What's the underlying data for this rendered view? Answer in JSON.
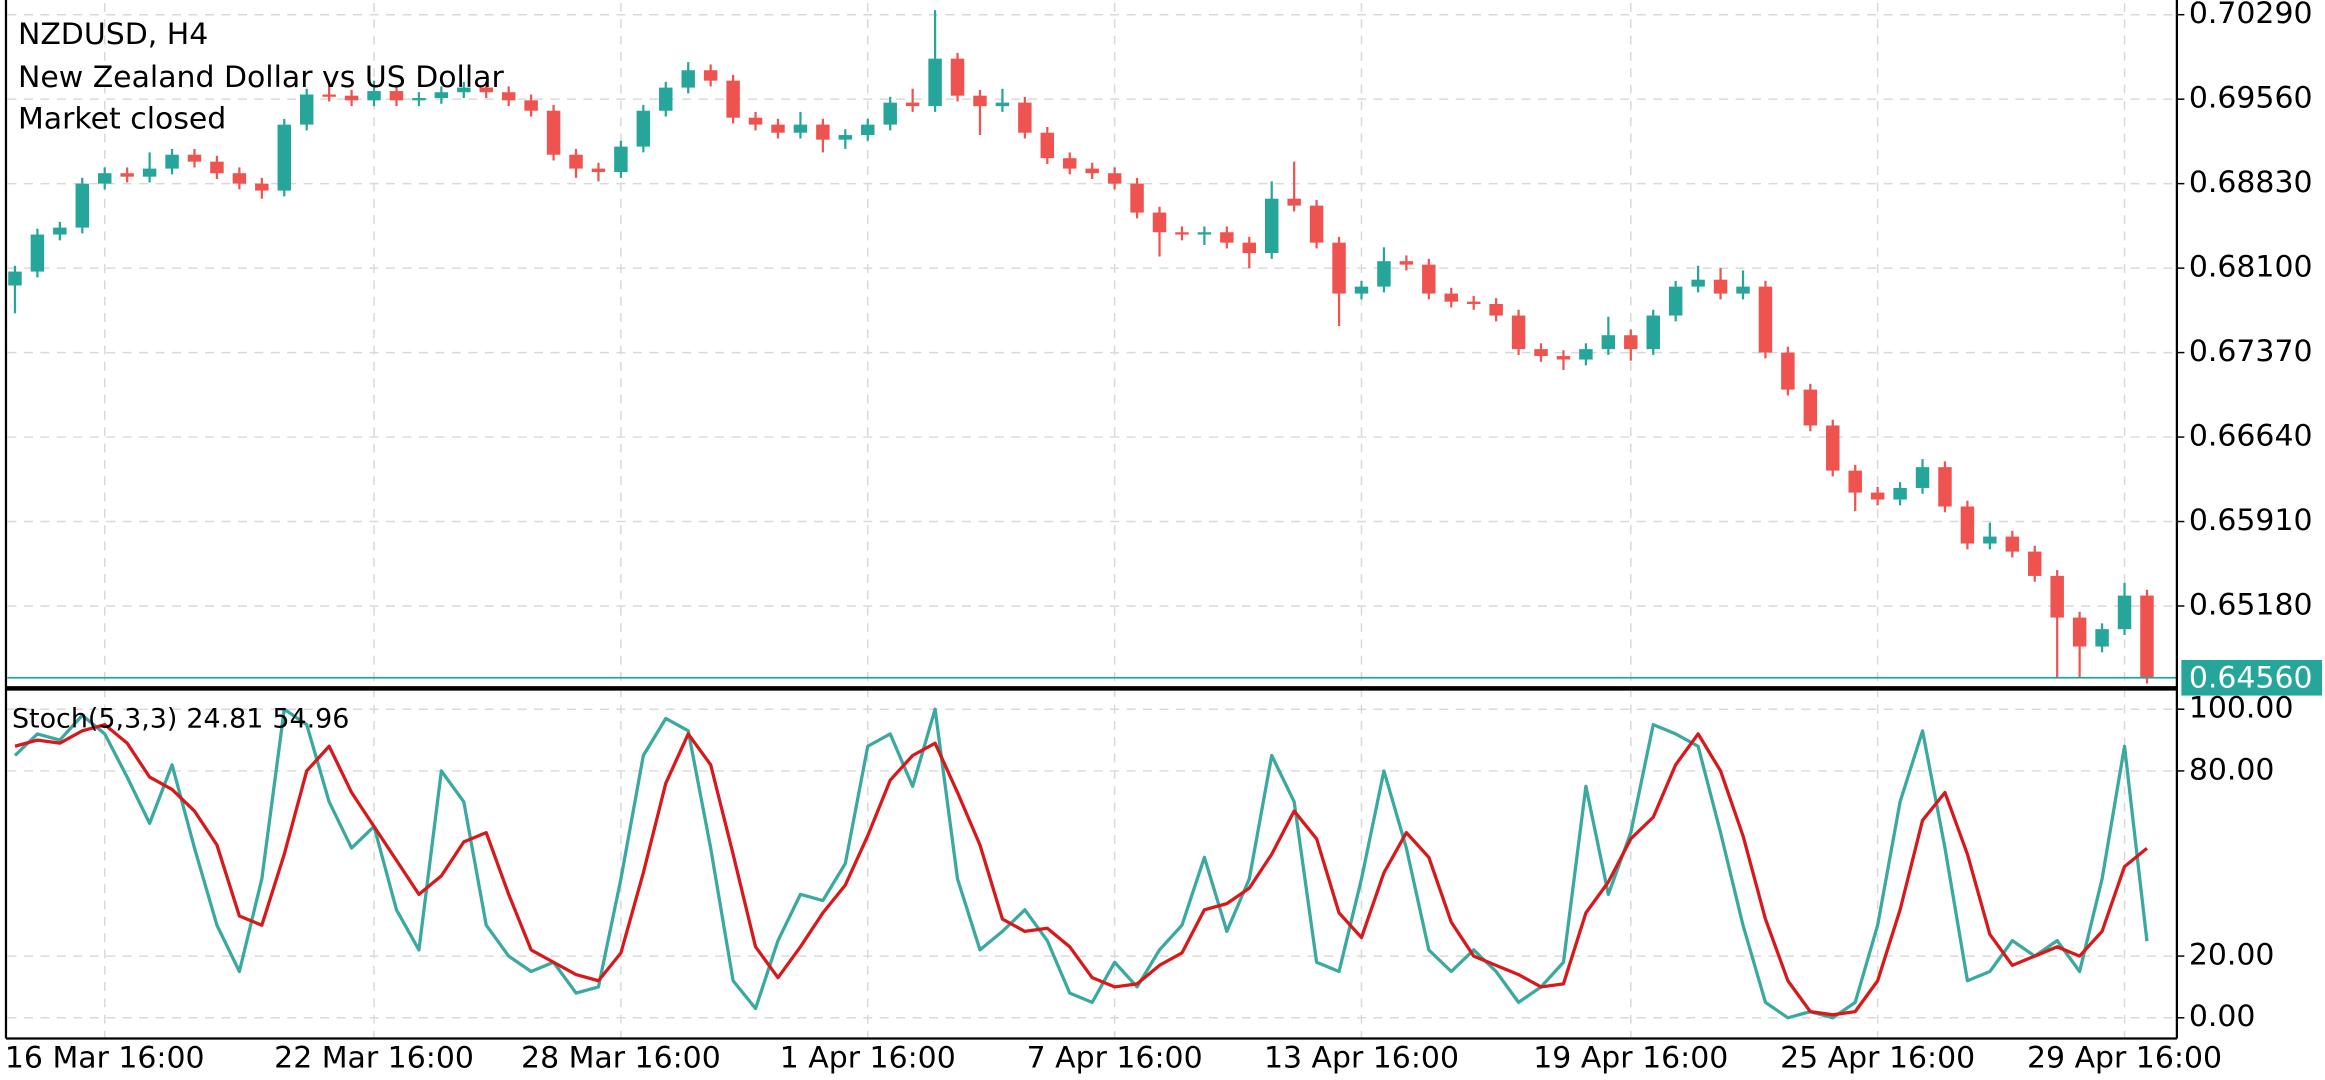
{
  "chart_data": [
    {
      "type": "candlestick",
      "title": "NZDUSD, H4",
      "subtitle": "New Zealand Dollar vs US Dollar",
      "status": "Market closed",
      "up_color": "#26a69a",
      "down_color": "#ef5350",
      "ylim": [
        0.64494,
        0.70417
      ],
      "yticks": [
        {
          "value": 0.7029,
          "label": "0.70290"
        },
        {
          "value": 0.6956,
          "label": "0.69560"
        },
        {
          "value": 0.6883,
          "label": "0.68830"
        },
        {
          "value": 0.681,
          "label": "0.68100"
        },
        {
          "value": 0.6737,
          "label": "0.67370"
        },
        {
          "value": 0.6664,
          "label": "0.66640"
        },
        {
          "value": 0.6591,
          "label": "0.65910"
        },
        {
          "value": 0.6518,
          "label": "0.65180"
        }
      ],
      "current_price": {
        "value": 0.6456,
        "label": "0.64560"
      },
      "grid": true,
      "categories": [
        null,
        null,
        null,
        null,
        "16 Mar 16:00",
        null,
        null,
        null,
        null,
        null,
        null,
        null,
        null,
        null,
        null,
        null,
        "22 Mar 16:00",
        null,
        null,
        null,
        null,
        null,
        null,
        null,
        null,
        null,
        null,
        "28 Mar 16:00",
        null,
        null,
        null,
        null,
        null,
        null,
        null,
        null,
        null,
        null,
        "1 Apr 16:00",
        null,
        null,
        null,
        null,
        null,
        null,
        null,
        null,
        null,
        null,
        "7 Apr 16:00",
        null,
        null,
        null,
        null,
        null,
        null,
        null,
        null,
        null,
        null,
        "13 Apr 16:00",
        null,
        null,
        null,
        null,
        null,
        null,
        null,
        null,
        null,
        null,
        null,
        "19 Apr 16:00",
        null,
        null,
        null,
        null,
        null,
        null,
        null,
        null,
        null,
        null,
        "25 Apr 16:00",
        null,
        null,
        null,
        null,
        null,
        null,
        null,
        null,
        null,
        null,
        "29 Apr 16:00",
        null
      ],
      "ohlc": [
        [
          0.6795,
          0.6812,
          0.6771,
          0.6807
        ],
        [
          0.6807,
          0.6844,
          0.6802,
          0.6839
        ],
        [
          0.6839,
          0.685,
          0.6834,
          0.6845
        ],
        [
          0.6845,
          0.6888,
          0.684,
          0.6883
        ],
        [
          0.6883,
          0.6897,
          0.6878,
          0.6892
        ],
        [
          0.6892,
          0.6897,
          0.6884,
          0.6889
        ],
        [
          0.6889,
          0.691,
          0.6884,
          0.6896
        ],
        [
          0.6896,
          0.6913,
          0.6891,
          0.6908
        ],
        [
          0.6908,
          0.6913,
          0.6897,
          0.6902
        ],
        [
          0.6902,
          0.6907,
          0.6887,
          0.6892
        ],
        [
          0.6892,
          0.6897,
          0.6878,
          0.6883
        ],
        [
          0.6883,
          0.6888,
          0.687,
          0.6877
        ],
        [
          0.6877,
          0.6939,
          0.6872,
          0.6934
        ],
        [
          0.6934,
          0.6965,
          0.6929,
          0.696
        ],
        [
          0.696,
          0.6968,
          0.6954,
          0.6959
        ],
        [
          0.6959,
          0.6964,
          0.695,
          0.6955
        ],
        [
          0.6955,
          0.6972,
          0.695,
          0.6963
        ],
        [
          0.6963,
          0.6968,
          0.695,
          0.6955
        ],
        [
          0.6955,
          0.6962,
          0.695,
          0.6957
        ],
        [
          0.6957,
          0.6967,
          0.6952,
          0.6962
        ],
        [
          0.6962,
          0.6971,
          0.6957,
          0.6966
        ],
        [
          0.6966,
          0.6971,
          0.6957,
          0.6962
        ],
        [
          0.6962,
          0.6967,
          0.695,
          0.6955
        ],
        [
          0.6955,
          0.696,
          0.6941,
          0.6946
        ],
        [
          0.6946,
          0.6951,
          0.6903,
          0.6908
        ],
        [
          0.6908,
          0.6913,
          0.6888,
          0.6896
        ],
        [
          0.6896,
          0.6901,
          0.6885,
          0.6893
        ],
        [
          0.6893,
          0.692,
          0.6888,
          0.6915
        ],
        [
          0.6915,
          0.6951,
          0.691,
          0.6946
        ],
        [
          0.6946,
          0.6971,
          0.6941,
          0.6966
        ],
        [
          0.6966,
          0.6988,
          0.6961,
          0.6981
        ],
        [
          0.6981,
          0.6986,
          0.6967,
          0.6972
        ],
        [
          0.6972,
          0.6977,
          0.6935,
          0.694
        ],
        [
          0.694,
          0.6945,
          0.6929,
          0.6934
        ],
        [
          0.6934,
          0.6939,
          0.6922,
          0.6927
        ],
        [
          0.6927,
          0.6945,
          0.6922,
          0.6934
        ],
        [
          0.6934,
          0.6939,
          0.691,
          0.6921
        ],
        [
          0.6921,
          0.693,
          0.6913,
          0.6925
        ],
        [
          0.6925,
          0.6939,
          0.692,
          0.6934
        ],
        [
          0.6934,
          0.6958,
          0.6929,
          0.6953
        ],
        [
          0.6953,
          0.6965,
          0.6945,
          0.695
        ],
        [
          0.695,
          0.7033,
          0.6945,
          0.6991
        ],
        [
          0.6991,
          0.6996,
          0.6954,
          0.6959
        ],
        [
          0.6959,
          0.6964,
          0.6925,
          0.695
        ],
        [
          0.695,
          0.6965,
          0.6945,
          0.6953
        ],
        [
          0.6953,
          0.6958,
          0.6922,
          0.6927
        ],
        [
          0.6927,
          0.6932,
          0.69,
          0.6905
        ],
        [
          0.6905,
          0.691,
          0.6891,
          0.6896
        ],
        [
          0.6896,
          0.6901,
          0.6887,
          0.6892
        ],
        [
          0.6892,
          0.6897,
          0.6878,
          0.6883
        ],
        [
          0.6883,
          0.6888,
          0.6853,
          0.6858
        ],
        [
          0.6858,
          0.6863,
          0.682,
          0.6841
        ],
        [
          0.6841,
          0.6846,
          0.6834,
          0.6839
        ],
        [
          0.6839,
          0.6846,
          0.683,
          0.6841
        ],
        [
          0.6841,
          0.6846,
          0.6827,
          0.6832
        ],
        [
          0.6832,
          0.6837,
          0.681,
          0.6823
        ],
        [
          0.6823,
          0.6885,
          0.6818,
          0.687
        ],
        [
          0.687,
          0.6902,
          0.6859,
          0.6864
        ],
        [
          0.6864,
          0.6869,
          0.6827,
          0.6832
        ],
        [
          0.6832,
          0.6837,
          0.676,
          0.6788
        ],
        [
          0.6788,
          0.6799,
          0.6783,
          0.6794
        ],
        [
          0.6794,
          0.6828,
          0.6789,
          0.6816
        ],
        [
          0.6816,
          0.6821,
          0.6808,
          0.6813
        ],
        [
          0.6813,
          0.6818,
          0.6783,
          0.6788
        ],
        [
          0.6788,
          0.6793,
          0.6776,
          0.6781
        ],
        [
          0.6781,
          0.6786,
          0.6774,
          0.6779
        ],
        [
          0.6779,
          0.6784,
          0.6764,
          0.6769
        ],
        [
          0.6769,
          0.6774,
          0.6735,
          0.674
        ],
        [
          0.674,
          0.6745,
          0.6729,
          0.6734
        ],
        [
          0.6734,
          0.6739,
          0.6722,
          0.6731
        ],
        [
          0.6731,
          0.6745,
          0.6726,
          0.674
        ],
        [
          0.674,
          0.6768,
          0.6735,
          0.6752
        ],
        [
          0.6752,
          0.6757,
          0.673,
          0.674
        ],
        [
          0.674,
          0.6774,
          0.6735,
          0.6769
        ],
        [
          0.6769,
          0.6799,
          0.6764,
          0.6794
        ],
        [
          0.6794,
          0.6812,
          0.6789,
          0.68
        ],
        [
          0.68,
          0.681,
          0.6783,
          0.6788
        ],
        [
          0.6788,
          0.6808,
          0.6783,
          0.6794
        ],
        [
          0.6794,
          0.6799,
          0.6732,
          0.6737
        ],
        [
          0.6737,
          0.6742,
          0.67,
          0.6705
        ],
        [
          0.6705,
          0.671,
          0.6669,
          0.6674
        ],
        [
          0.6674,
          0.6679,
          0.663,
          0.6635
        ],
        [
          0.6635,
          0.664,
          0.66,
          0.6616
        ],
        [
          0.6616,
          0.6621,
          0.6605,
          0.661
        ],
        [
          0.661,
          0.6625,
          0.6605,
          0.662
        ],
        [
          0.662,
          0.6645,
          0.6615,
          0.6638
        ],
        [
          0.6638,
          0.6643,
          0.6599,
          0.6604
        ],
        [
          0.6604,
          0.6609,
          0.6567,
          0.6572
        ],
        [
          0.6572,
          0.659,
          0.6567,
          0.6578
        ],
        [
          0.6578,
          0.6583,
          0.656,
          0.6565
        ],
        [
          0.6565,
          0.657,
          0.6539,
          0.6544
        ],
        [
          0.6544,
          0.6549,
          0.6456,
          0.6508
        ],
        [
          0.6508,
          0.6513,
          0.6456,
          0.6483
        ],
        [
          0.6483,
          0.6503,
          0.6478,
          0.6498
        ],
        [
          0.6498,
          0.6538,
          0.6493,
          0.6527
        ],
        [
          0.6527,
          0.6532,
          0.6451,
          0.6456
        ]
      ]
    },
    {
      "type": "line",
      "label": "Stoch(5,3,3)",
      "current_values": [
        24.81,
        54.96
      ],
      "ylim": [
        -6.7,
        105.8
      ],
      "yticks": [
        {
          "value": 100,
          "label": "100.00"
        },
        {
          "value": 80,
          "label": "80.00"
        },
        {
          "value": 20,
          "label": "20.00"
        },
        {
          "value": 0,
          "label": "0.00"
        }
      ],
      "grid": true,
      "series": [
        {
          "color": "#3aa9a0",
          "values": [
            85,
            92,
            90,
            98,
            92,
            78,
            63,
            82,
            55,
            30,
            15,
            45,
            100,
            95,
            70,
            55,
            62,
            35,
            22,
            80,
            70,
            30,
            20,
            15,
            18,
            8,
            10,
            45,
            85,
            97,
            93,
            55,
            12,
            3,
            25,
            40,
            38,
            50,
            88,
            92,
            75,
            100,
            45,
            22,
            28,
            35,
            25,
            8,
            5,
            18,
            10,
            22,
            30,
            52,
            28,
            45,
            85,
            70,
            18,
            15,
            45,
            80,
            55,
            22,
            15,
            22,
            15,
            5,
            10,
            18,
            75,
            40,
            60,
            95,
            92,
            88,
            60,
            30,
            5,
            0,
            2,
            0,
            5,
            30,
            70,
            93,
            55,
            12,
            15,
            25,
            20,
            25,
            15,
            45,
            88,
            24.81
          ]
        },
        {
          "color": "#d7191c",
          "values": [
            88,
            90,
            89,
            93,
            95,
            89,
            78,
            74,
            67,
            56,
            33,
            30,
            53,
            80,
            88,
            73,
            62,
            51,
            40,
            46,
            57,
            60,
            40,
            22,
            18,
            14,
            12,
            21,
            47,
            76,
            92,
            82,
            53,
            23,
            13,
            23,
            34,
            43,
            59,
            77,
            85,
            89,
            73,
            56,
            32,
            28,
            29,
            23,
            13,
            10,
            11,
            17,
            21,
            35,
            37,
            42,
            53,
            67,
            58,
            34,
            26,
            47,
            60,
            52,
            31,
            20,
            17,
            14,
            10,
            11,
            34,
            44,
            58,
            65,
            82,
            92,
            80,
            59,
            32,
            12,
            2,
            1,
            2,
            12,
            35,
            64,
            73,
            53,
            27,
            17,
            20,
            23,
            20,
            28,
            49,
            54.96
          ]
        }
      ]
    }
  ]
}
